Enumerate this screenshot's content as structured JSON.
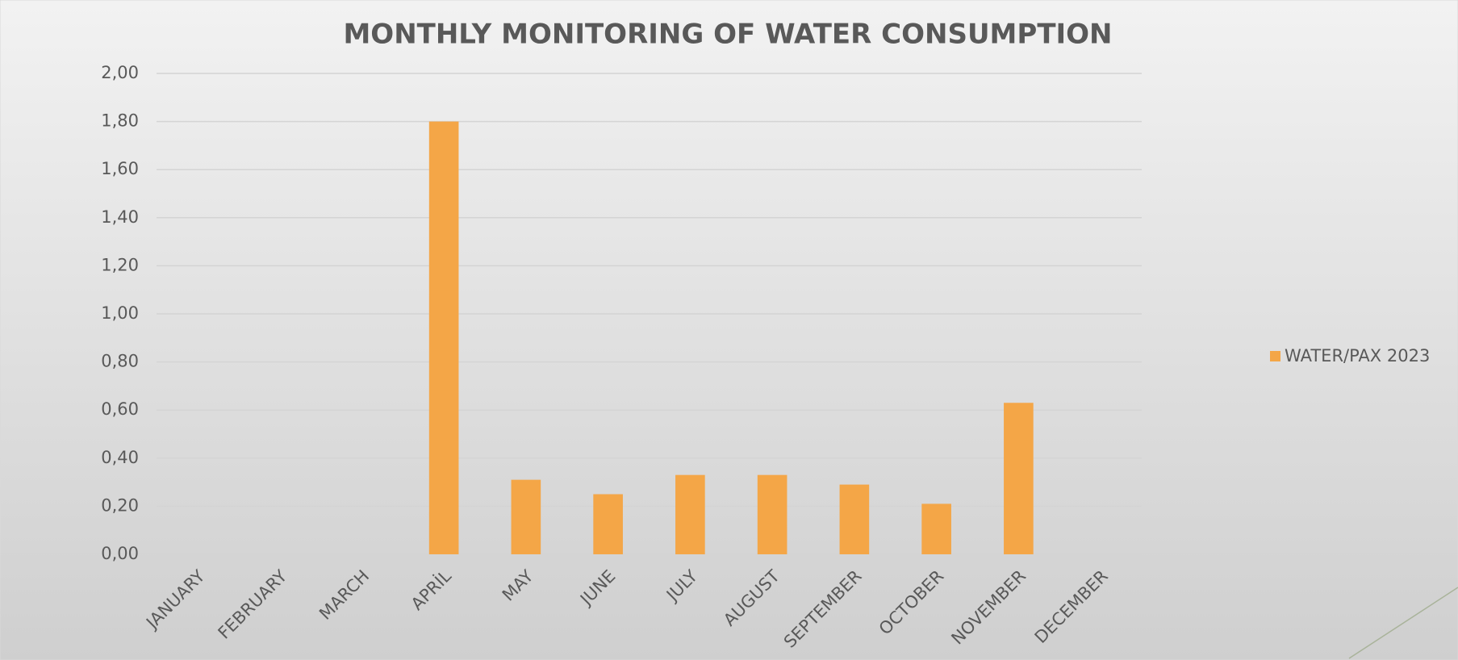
{
  "chart_data": {
    "type": "bar",
    "title": "MONTHLY MONITORING OF WATER CONSUMPTION",
    "categories": [
      "JANUARY",
      "FEBRUARY",
      "MARCH",
      "APRİL",
      "MAY",
      "JUNE",
      "JULY",
      "AUGUST",
      "SEPTEMBER",
      "OCTOBER",
      "NOVEMBER",
      "DECEMBER"
    ],
    "series": [
      {
        "name": "WATER/PAX 2023",
        "color": "#f4a647",
        "values": [
          null,
          null,
          null,
          1.8,
          0.31,
          0.25,
          0.33,
          0.33,
          0.29,
          0.21,
          0.63,
          null
        ]
      }
    ],
    "ylim": [
      0,
      2
    ],
    "yticks": [
      {
        "value": 0,
        "label": "0,00"
      },
      {
        "value": 0.2,
        "label": "0,20"
      },
      {
        "value": 0.4,
        "label": "0,40"
      },
      {
        "value": 0.6,
        "label": "0,60"
      },
      {
        "value": 0.8,
        "label": "0,80"
      },
      {
        "value": 1,
        "label": "1,00"
      },
      {
        "value": 1.2,
        "label": "1,20"
      },
      {
        "value": 1.4,
        "label": "1,40"
      },
      {
        "value": 1.6,
        "label": "1,60"
      },
      {
        "value": 1.8,
        "label": "1,80"
      },
      {
        "value": 2,
        "label": "2,00"
      }
    ],
    "grid": true,
    "legend": "right"
  }
}
